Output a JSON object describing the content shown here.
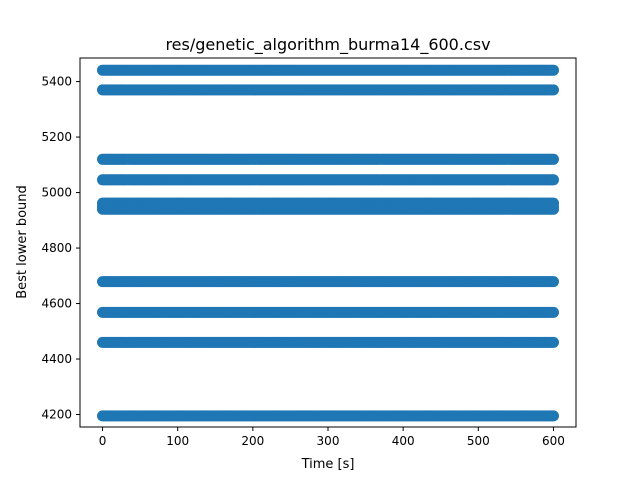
{
  "chart_data": {
    "type": "scatter",
    "title": "res/genetic_algorithm_burma14_600.csv",
    "xlabel": "Time [s]",
    "ylabel": "Best lower bound",
    "xlim": [
      -30,
      630
    ],
    "ylim": [
      4155,
      5485
    ],
    "xticks": [
      0,
      100,
      200,
      300,
      400,
      500,
      600
    ],
    "xtick_labels": [
      "0",
      "100",
      "200",
      "300",
      "400",
      "500",
      "600"
    ],
    "yticks": [
      4200,
      4400,
      4600,
      4800,
      5000,
      5200,
      5400
    ],
    "ytick_labels": [
      "4200",
      "4400",
      "4600",
      "4800",
      "5000",
      "5200",
      "5400"
    ],
    "grid": false,
    "marker_color": "#1f77b4",
    "x_range": [
      0,
      600
    ],
    "series": [
      {
        "y_levels": [
          4195,
          4460,
          4568,
          4679,
          4940,
          4950,
          4962,
          5046,
          5120,
          5370,
          5441
        ]
      }
    ]
  }
}
